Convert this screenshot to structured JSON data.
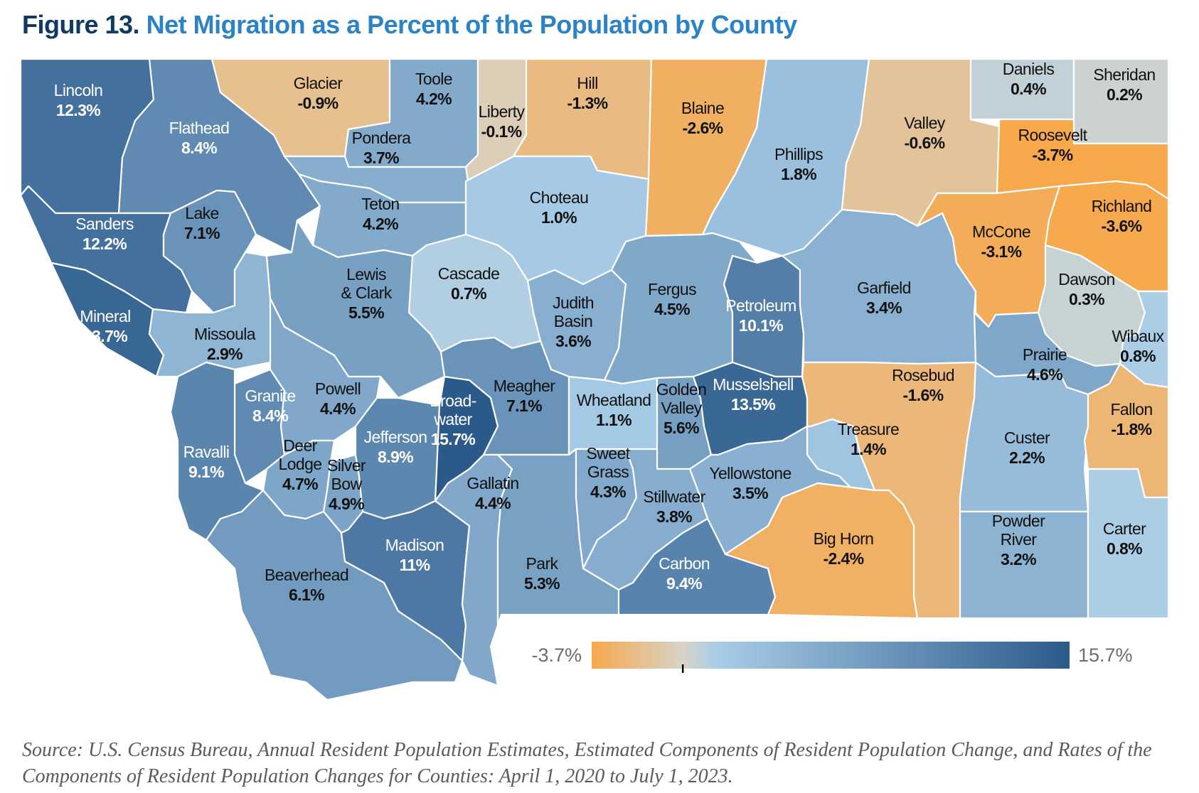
{
  "figure": {
    "label": "Figure 13.",
    "title": "Net Migration as a Percent of the Population by County"
  },
  "legend": {
    "min_label": "-3.7%",
    "max_label": "15.7%",
    "min_value": -3.7,
    "max_value": 15.7,
    "zero_value": 0,
    "colors": {
      "negative_low": "#f6a84b",
      "neutral": "#d8d4c8",
      "positive_low": "#a9cde8",
      "positive_high": "#2b5a8a"
    }
  },
  "counties": [
    {
      "name": "Lincoln",
      "value": 12.3,
      "label": [
        "Lincoln"
      ],
      "value_label": "12.3%"
    },
    {
      "name": "Flathead",
      "value": 8.4,
      "label": [
        "Flathead"
      ],
      "value_label": "8.4%"
    },
    {
      "name": "Glacier",
      "value": -0.9,
      "label": [
        "Glacier"
      ],
      "value_label": "-0.9%"
    },
    {
      "name": "Toole",
      "value": 4.2,
      "label": [
        "Toole"
      ],
      "value_label": "4.2%"
    },
    {
      "name": "Liberty",
      "value": -0.1,
      "label": [
        "Liberty"
      ],
      "value_label": "-0.1%"
    },
    {
      "name": "Hill",
      "value": -1.3,
      "label": [
        "Hill"
      ],
      "value_label": "-1.3%"
    },
    {
      "name": "Blaine",
      "value": -2.6,
      "label": [
        "Blaine"
      ],
      "value_label": "-2.6%"
    },
    {
      "name": "Phillips",
      "value": 1.8,
      "label": [
        "Phillips"
      ],
      "value_label": "1.8%"
    },
    {
      "name": "Valley",
      "value": -0.6,
      "label": [
        "Valley"
      ],
      "value_label": "-0.6%"
    },
    {
      "name": "Daniels",
      "value": 0.4,
      "label": [
        "Daniels"
      ],
      "value_label": "0.4%"
    },
    {
      "name": "Sheridan",
      "value": 0.2,
      "label": [
        "Sheridan"
      ],
      "value_label": "0.2%"
    },
    {
      "name": "Roosevelt",
      "value": -3.7,
      "label": [
        "Roosevelt"
      ],
      "value_label": "-3.7%"
    },
    {
      "name": "Pondera",
      "value": 3.7,
      "label": [
        "Pondera"
      ],
      "value_label": "3.7%"
    },
    {
      "name": "Teton",
      "value": 4.2,
      "label": [
        "Teton"
      ],
      "value_label": "4.2%"
    },
    {
      "name": "Choteau",
      "value": 1.0,
      "label": [
        "Choteau"
      ],
      "value_label": "1.0%"
    },
    {
      "name": "Sanders",
      "value": 12.2,
      "label": [
        "Sanders"
      ],
      "value_label": "12.2%"
    },
    {
      "name": "Lake",
      "value": 7.1,
      "label": [
        "Lake"
      ],
      "value_label": "7.1%"
    },
    {
      "name": "Mineral",
      "value": 13.7,
      "label": [
        "Mineral"
      ],
      "value_label": "13.7%"
    },
    {
      "name": "Missoula",
      "value": 2.9,
      "label": [
        "Missoula"
      ],
      "value_label": "2.9%"
    },
    {
      "name": "Cascade",
      "value": 0.7,
      "label": [
        "Cascade"
      ],
      "value_label": "0.7%"
    },
    {
      "name": "Lewis & Clark",
      "value": 5.5,
      "label": [
        "Lewis",
        "& Clark"
      ],
      "value_label": "5.5%"
    },
    {
      "name": "Judith Basin",
      "value": 3.6,
      "label": [
        "Judith",
        "Basin"
      ],
      "value_label": "3.6%"
    },
    {
      "name": "Fergus",
      "value": 4.5,
      "label": [
        "Fergus"
      ],
      "value_label": "4.5%"
    },
    {
      "name": "Petroleum",
      "value": 10.1,
      "label": [
        "Petroleum"
      ],
      "value_label": "10.1%"
    },
    {
      "name": "Garfield",
      "value": 3.4,
      "label": [
        "Garfield"
      ],
      "value_label": "3.4%"
    },
    {
      "name": "McCone",
      "value": -3.1,
      "label": [
        "McCone"
      ],
      "value_label": "-3.1%"
    },
    {
      "name": "Richland",
      "value": -3.6,
      "label": [
        "Richland"
      ],
      "value_label": "-3.6%"
    },
    {
      "name": "Dawson",
      "value": 0.3,
      "label": [
        "Dawson"
      ],
      "value_label": "0.3%"
    },
    {
      "name": "Wibaux",
      "value": 0.8,
      "label": [
        "Wibaux"
      ],
      "value_label": "0.8%"
    },
    {
      "name": "Prairie",
      "value": 4.6,
      "label": [
        "Prairie"
      ],
      "value_label": "4.6%"
    },
    {
      "name": "Granite",
      "value": 8.4,
      "label": [
        "Granite"
      ],
      "value_label": "8.4%"
    },
    {
      "name": "Powell",
      "value": 4.4,
      "label": [
        "Powell"
      ],
      "value_label": "4.4%"
    },
    {
      "name": "Ravalli",
      "value": 9.1,
      "label": [
        "Ravalli"
      ],
      "value_label": "9.1%"
    },
    {
      "name": "Deer Lodge",
      "value": 4.7,
      "label": [
        "Deer",
        "Lodge"
      ],
      "value_label": "4.7%"
    },
    {
      "name": "Silver Bow",
      "value": 4.9,
      "label": [
        "Silver",
        "Bow"
      ],
      "value_label": "4.9%"
    },
    {
      "name": "Jefferson",
      "value": 8.9,
      "label": [
        "Jefferson"
      ],
      "value_label": "8.9%"
    },
    {
      "name": "Broadwater",
      "value": 15.7,
      "label": [
        "Broad-",
        "water"
      ],
      "value_label": "15.7%"
    },
    {
      "name": "Meagher",
      "value": 7.1,
      "label": [
        "Meagher"
      ],
      "value_label": "7.1%"
    },
    {
      "name": "Wheatland",
      "value": 1.1,
      "label": [
        "Wheatland"
      ],
      "value_label": "1.1%"
    },
    {
      "name": "Golden Valley",
      "value": 5.6,
      "label": [
        "Golden",
        "Valley"
      ],
      "value_label": "5.6%"
    },
    {
      "name": "Musselshell",
      "value": 13.5,
      "label": [
        "Musselshell"
      ],
      "value_label": "13.5%"
    },
    {
      "name": "Rosebud",
      "value": -1.6,
      "label": [
        "Rosebud"
      ],
      "value_label": "-1.6%"
    },
    {
      "name": "Treasure",
      "value": 1.4,
      "label": [
        "Treasure"
      ],
      "value_label": "1.4%"
    },
    {
      "name": "Custer",
      "value": 2.2,
      "label": [
        "Custer"
      ],
      "value_label": "2.2%"
    },
    {
      "name": "Fallon",
      "value": -1.8,
      "label": [
        "Fallon"
      ],
      "value_label": "-1.8%"
    },
    {
      "name": "Beaverhead",
      "value": 6.1,
      "label": [
        "Beaverhead"
      ],
      "value_label": "6.1%"
    },
    {
      "name": "Madison",
      "value": 11,
      "label": [
        "Madison"
      ],
      "value_label": "11%"
    },
    {
      "name": "Gallatin",
      "value": 4.4,
      "label": [
        "Gallatin"
      ],
      "value_label": "4.4%"
    },
    {
      "name": "Park",
      "value": 5.3,
      "label": [
        "Park"
      ],
      "value_label": "5.3%"
    },
    {
      "name": "Sweet Grass",
      "value": 4.3,
      "label": [
        "Sweet",
        "Grass"
      ],
      "value_label": "4.3%"
    },
    {
      "name": "Stillwater",
      "value": 3.8,
      "label": [
        "Stillwater"
      ],
      "value_label": "3.8%"
    },
    {
      "name": "Yellowstone",
      "value": 3.5,
      "label": [
        "Yellowstone"
      ],
      "value_label": "3.5%"
    },
    {
      "name": "Carbon",
      "value": 9.4,
      "label": [
        "Carbon"
      ],
      "value_label": "9.4%"
    },
    {
      "name": "Big Horn",
      "value": -2.4,
      "label": [
        "Big Horn"
      ],
      "value_label": "-2.4%"
    },
    {
      "name": "Powder River",
      "value": 3.2,
      "label": [
        "Powder",
        "River"
      ],
      "value_label": "3.2%"
    },
    {
      "name": "Carter",
      "value": 0.8,
      "label": [
        "Carter"
      ],
      "value_label": "0.8%"
    }
  ],
  "source_note": "Source: U.S. Census Bureau, Annual Resident Population Estimates, Estimated Components of Resident Population Change, and Rates of the Components of Resident Population Changes for Counties: April 1, 2020 to July 1, 2023."
}
